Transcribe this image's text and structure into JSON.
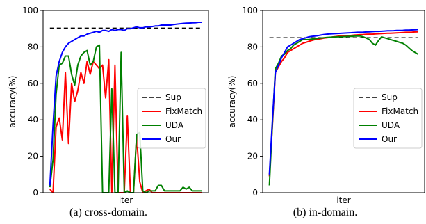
{
  "captions": [
    "(a) cross-domain.",
    "(b) in-domain."
  ],
  "chart_data": [
    {
      "type": "line",
      "title": "",
      "xlabel": "iter",
      "ylabel": "accuracy(%)",
      "ylim": [
        0,
        100
      ],
      "yticks": [
        0,
        20,
        40,
        60,
        80,
        100
      ],
      "x_tick_labels": false,
      "grid": false,
      "legend_position": "center-right",
      "series": [
        {
          "name": "Sup",
          "style": "dashed",
          "color": "#000000",
          "x": [
            0,
            49
          ],
          "y": [
            90.3,
            90.3
          ]
        },
        {
          "name": "FixMatch",
          "style": "solid",
          "color": "#ff0000",
          "x": [
            0,
            1,
            2,
            3,
            4,
            5,
            6,
            7,
            8,
            9,
            10,
            11,
            12,
            13,
            14,
            15,
            16,
            17,
            18,
            19,
            20,
            21,
            22,
            23,
            24,
            25,
            26,
            27,
            28,
            29,
            30,
            31,
            32,
            33,
            34,
            35,
            36,
            37,
            38,
            39,
            40,
            41,
            42,
            43,
            44,
            45,
            46,
            47,
            48,
            49
          ],
          "y": [
            2,
            0,
            36,
            41,
            29,
            66,
            27,
            60,
            50,
            56,
            66,
            60,
            72,
            65,
            72,
            70,
            68,
            70,
            52,
            73,
            0,
            70,
            0,
            0,
            0,
            42,
            0,
            0,
            31,
            6,
            0,
            1,
            2,
            0,
            0,
            0,
            0,
            0,
            0,
            0,
            0,
            0,
            0,
            0,
            0,
            0,
            0,
            0,
            0,
            0
          ]
        },
        {
          "name": "UDA",
          "style": "solid",
          "color": "#008000",
          "x": [
            0,
            1,
            2,
            3,
            4,
            5,
            6,
            7,
            8,
            9,
            10,
            11,
            12,
            13,
            14,
            15,
            16,
            17,
            18,
            19,
            20,
            21,
            22,
            23,
            24,
            25,
            26,
            27,
            28,
            29,
            30,
            31,
            32,
            33,
            34,
            35,
            36,
            37,
            38,
            39,
            40,
            41,
            42,
            43,
            44,
            45,
            46,
            47,
            48,
            49
          ],
          "y": [
            3,
            18,
            54,
            70,
            71,
            75,
            75,
            65,
            59,
            70,
            75,
            77,
            78,
            70,
            72,
            80,
            81,
            0,
            0,
            0,
            57,
            0,
            0,
            77,
            0,
            1,
            0,
            0,
            32,
            33,
            1,
            0,
            1,
            1,
            1,
            4,
            4,
            1,
            1,
            1,
            1,
            1,
            1,
            3,
            2,
            3,
            1,
            1,
            1,
            1
          ]
        },
        {
          "name": "Our",
          "style": "solid",
          "color": "#0000ff",
          "x": [
            0,
            1,
            2,
            3,
            4,
            5,
            6,
            7,
            8,
            9,
            10,
            11,
            12,
            13,
            14,
            15,
            16,
            17,
            18,
            19,
            20,
            21,
            22,
            23,
            24,
            25,
            26,
            27,
            28,
            29,
            30,
            31,
            32,
            33,
            34,
            35,
            36,
            37,
            38,
            39,
            40,
            41,
            42,
            43,
            44,
            45,
            46,
            47,
            48,
            49
          ],
          "y": [
            4,
            37,
            64,
            72,
            77,
            80,
            82,
            83,
            84,
            85,
            86,
            86,
            87,
            87.5,
            88,
            88.5,
            88,
            89,
            89,
            88.5,
            89.5,
            89,
            89.5,
            89.5,
            89,
            90,
            90,
            90.5,
            91,
            90.5,
            90.5,
            91,
            91,
            91.2,
            91.5,
            91.5,
            92,
            92,
            92,
            92,
            92.3,
            92.5,
            92.7,
            92.9,
            93,
            93.1,
            93.2,
            93.3,
            93.5,
            93.5
          ]
        }
      ]
    },
    {
      "type": "line",
      "title": "",
      "xlabel": "iter",
      "ylabel": "accuracy(%)",
      "ylim": [
        0,
        100
      ],
      "yticks": [
        0,
        20,
        40,
        60,
        80,
        100
      ],
      "x_tick_labels": false,
      "grid": false,
      "legend_position": "center-right",
      "series": [
        {
          "name": "Sup",
          "style": "dashed",
          "color": "#000000",
          "x": [
            0,
            49
          ],
          "y": [
            85,
            85
          ]
        },
        {
          "name": "FixMatch",
          "style": "solid",
          "color": "#ff0000",
          "x": [
            0,
            1,
            2,
            3,
            4,
            5,
            6,
            7,
            8,
            9,
            10,
            11,
            12,
            13,
            14,
            15,
            16,
            17,
            18,
            19,
            20,
            21,
            22,
            23,
            24,
            25,
            26,
            27,
            28,
            29,
            30,
            31,
            32,
            33,
            34,
            35,
            36,
            37,
            38,
            39,
            40,
            41,
            42,
            43,
            44,
            45,
            46,
            47,
            48,
            49
          ],
          "y": [
            9,
            37,
            66,
            69,
            72,
            74,
            77,
            78,
            79,
            80,
            81,
            82,
            82.5,
            83,
            83.5,
            84,
            84.2,
            84.5,
            84.8,
            85,
            85.2,
            85.5,
            85.7,
            85.9,
            86,
            86.1,
            86.2,
            86.3,
            86.5,
            86.6,
            86.7,
            86.8,
            86.9,
            87,
            87,
            87.1,
            87.2,
            87.3,
            87.4,
            87.5,
            87.5,
            87.6,
            87.7,
            87.8,
            87.9,
            88,
            88,
            88.1,
            88.2,
            88.3
          ]
        },
        {
          "name": "UDA",
          "style": "solid",
          "color": "#008000",
          "x": [
            0,
            1,
            2,
            3,
            4,
            5,
            6,
            7,
            8,
            9,
            10,
            11,
            12,
            13,
            14,
            15,
            16,
            17,
            18,
            19,
            20,
            21,
            22,
            23,
            24,
            25,
            26,
            27,
            28,
            29,
            30,
            31,
            32,
            33,
            34,
            35,
            36,
            37,
            38,
            39,
            40,
            41,
            42,
            43,
            44,
            45,
            46,
            47,
            48,
            49
          ],
          "y": [
            4,
            38,
            68,
            71,
            75,
            76,
            78,
            79,
            81,
            82,
            83,
            84,
            84,
            84,
            84.3,
            84.5,
            84.7,
            84.8,
            85,
            85.2,
            85.3,
            85.4,
            85.5,
            85.6,
            85.6,
            85.7,
            85.8,
            85.8,
            85.9,
            86,
            86,
            85.5,
            84.8,
            84,
            82,
            81,
            83.5,
            85.5,
            85,
            84.5,
            84,
            83.5,
            83,
            82.5,
            82,
            81,
            79.5,
            78,
            77,
            76
          ]
        },
        {
          "name": "Our",
          "style": "solid",
          "color": "#0000ff",
          "x": [
            0,
            1,
            2,
            3,
            4,
            5,
            6,
            7,
            8,
            9,
            10,
            11,
            12,
            13,
            14,
            15,
            16,
            17,
            18,
            19,
            20,
            21,
            22,
            23,
            24,
            25,
            26,
            27,
            28,
            29,
            30,
            31,
            32,
            33,
            34,
            35,
            36,
            37,
            38,
            39,
            40,
            41,
            42,
            43,
            44,
            45,
            46,
            47,
            48,
            49
          ],
          "y": [
            10,
            40,
            66,
            70,
            74,
            77,
            80,
            81,
            82,
            83,
            84,
            84.5,
            85,
            85.5,
            85.8,
            86,
            86.2,
            86.5,
            86.8,
            87,
            87.1,
            87.2,
            87.3,
            87.4,
            87.5,
            87.6,
            87.7,
            87.8,
            87.9,
            88,
            88,
            88.1,
            88.2,
            88.3,
            88.4,
            88.5,
            88.5,
            88.6,
            88.7,
            88.8,
            88.8,
            88.9,
            89,
            89,
            89.1,
            89.2,
            89.2,
            89.3,
            89.4,
            89.5
          ]
        }
      ]
    }
  ]
}
